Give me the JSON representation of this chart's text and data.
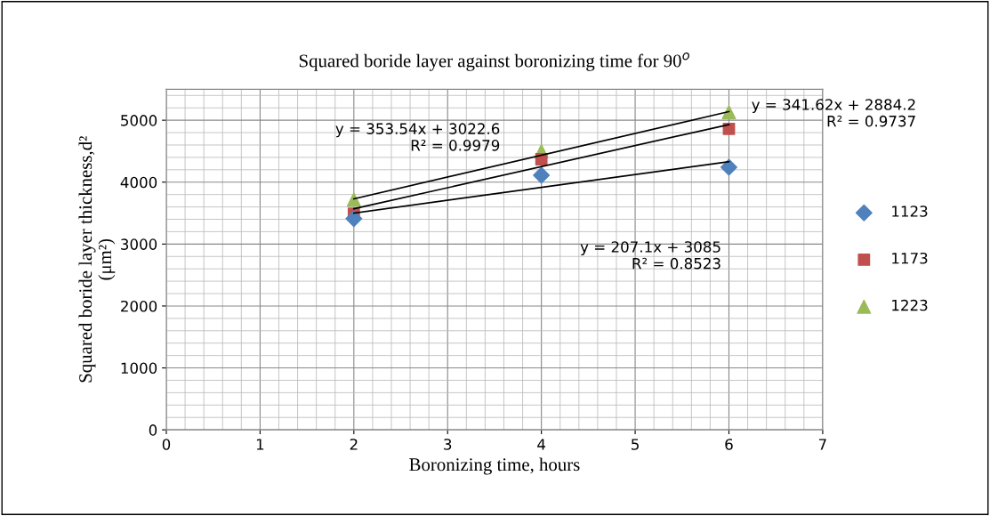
{
  "chart_data": {
    "type": "scatter",
    "title": "Squared boride layer against boronizing time for 90$^{o}$",
    "xlabel": "Boronizing time, hours",
    "ylabel": "Squared boride layer thickness,d²\n(μm²)",
    "xlim": [
      0,
      7
    ],
    "xticks": [
      0,
      1,
      2,
      3,
      4,
      5,
      6,
      7
    ],
    "ylim": [
      0,
      5500
    ],
    "yticks": [
      0,
      1000,
      2000,
      3000,
      4000,
      5000
    ],
    "grid": true,
    "legend": "right",
    "series": [
      {
        "name": "1123",
        "color": "#4f81bd",
        "marker": "diamond",
        "x": [
          2,
          4,
          6
        ],
        "values": [
          3410,
          4110,
          4240
        ]
      },
      {
        "name": "1173",
        "color": "#c0504d",
        "marker": "square",
        "x": [
          2,
          4,
          6
        ],
        "values": [
          3490,
          4370,
          4860
        ]
      },
      {
        "name": "1223",
        "color": "#9bbb59",
        "marker": "triangle",
        "x": [
          2,
          4,
          6
        ],
        "values": [
          3720,
          4500,
          5130
        ]
      },
      {
        "type": "line",
        "color": "#000000",
        "marker": "none",
        "x": [
          2,
          6
        ],
        "values": [
          3500,
          4330
        ]
      },
      {
        "type": "line",
        "color": "#000000",
        "marker": "none",
        "x": [
          2,
          6
        ],
        "values": [
          3570,
          4930
        ]
      },
      {
        "type": "line",
        "color": "#000000",
        "marker": "none",
        "x": [
          2,
          6
        ],
        "values": [
          3730,
          5140
        ]
      }
    ],
    "annotations": [
      "y = 353.54x + 3022.6\nR² = 0.9979",
      "y = 341.62x + 2884.2\nR² = 0.9737",
      "y = 207.1x + 3085\nR² = 0.8523"
    ]
  }
}
